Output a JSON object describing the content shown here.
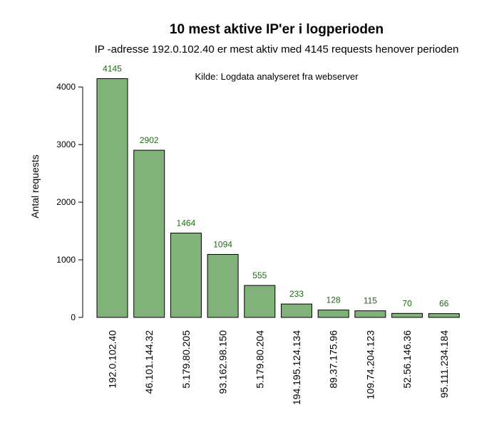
{
  "chart_data": {
    "type": "bar",
    "title": "10 mest aktive IP'er i logperioden",
    "subtitle": "IP -adresse 192.0.102.40 er mest aktiv med 4145 requests henover perioden",
    "annotation": "Kilde: Logdata analyseret fra webserver",
    "xlabel": "",
    "ylabel": "Antal requests",
    "categories": [
      "192.0.102.40",
      "46.101.144.32",
      "5.179.80.205",
      "93.162.98.150",
      "5.179.80.204",
      "194.195.124.134",
      "89.37.175.96",
      "109.74.204.123",
      "52.56.146.36",
      "95.111.234.184"
    ],
    "values": [
      4145,
      2902,
      1464,
      1094,
      555,
      233,
      128,
      115,
      70,
      66
    ],
    "yticks": [
      0,
      1000,
      2000,
      3000,
      4000
    ],
    "ylim": [
      0,
      4145
    ],
    "bar_color": "#80b279",
    "bar_border_color": "#000000",
    "data_label_color": "#1e6b14",
    "grid": false,
    "legend": "none"
  }
}
